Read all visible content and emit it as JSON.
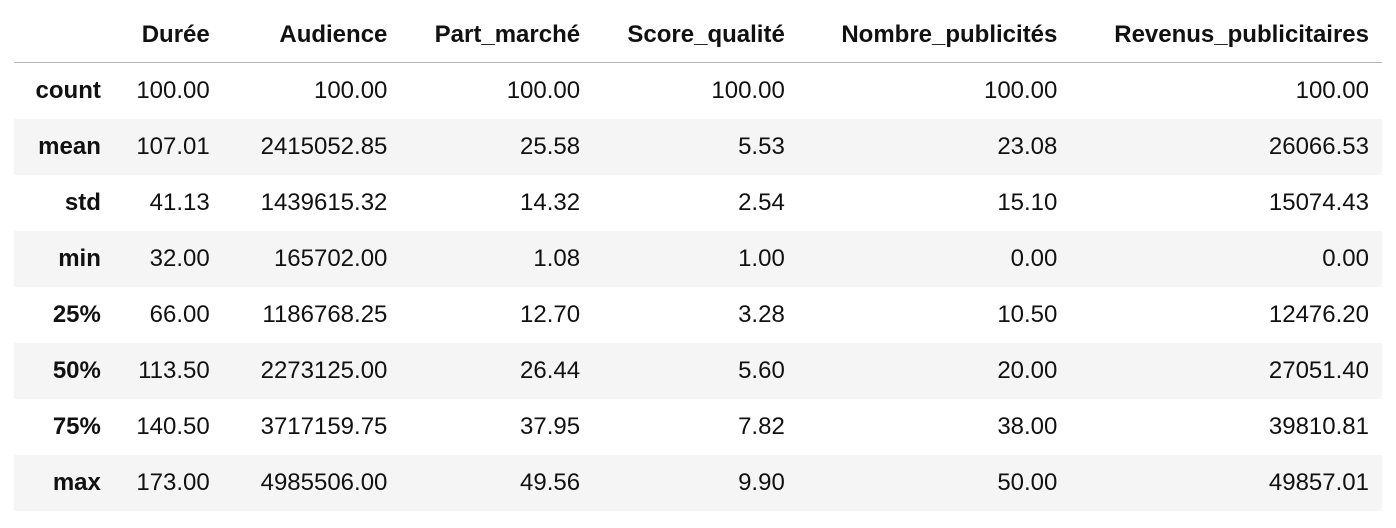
{
  "table": {
    "columns": [
      "",
      "Durée",
      "Audience",
      "Part_marché",
      "Score_qualité",
      "Nombre_publicités",
      "Revenus_publicitaires"
    ],
    "rows": [
      {
        "label": "count",
        "values": [
          "100.00",
          "100.00",
          "100.00",
          "100.00",
          "100.00",
          "100.00"
        ]
      },
      {
        "label": "mean",
        "values": [
          "107.01",
          "2415052.85",
          "25.58",
          "5.53",
          "23.08",
          "26066.53"
        ]
      },
      {
        "label": "std",
        "values": [
          "41.13",
          "1439615.32",
          "14.32",
          "2.54",
          "15.10",
          "15074.43"
        ]
      },
      {
        "label": "min",
        "values": [
          "32.00",
          "165702.00",
          "1.08",
          "1.00",
          "0.00",
          "0.00"
        ]
      },
      {
        "label": "25%",
        "values": [
          "66.00",
          "1186768.25",
          "12.70",
          "3.28",
          "10.50",
          "12476.20"
        ]
      },
      {
        "label": "50%",
        "values": [
          "113.50",
          "2273125.00",
          "26.44",
          "5.60",
          "20.00",
          "27051.40"
        ]
      },
      {
        "label": "75%",
        "values": [
          "140.50",
          "3717159.75",
          "37.95",
          "7.82",
          "38.00",
          "39810.81"
        ]
      },
      {
        "label": "max",
        "values": [
          "173.00",
          "4985506.00",
          "49.56",
          "9.90",
          "50.00",
          "49857.01"
        ]
      }
    ]
  }
}
